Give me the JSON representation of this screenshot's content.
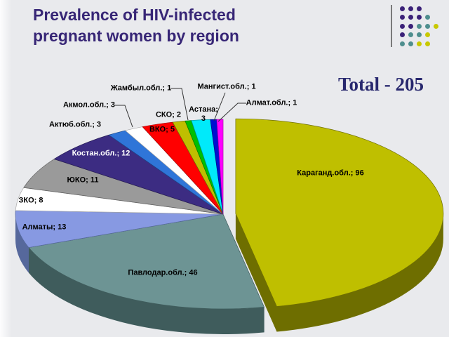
{
  "slide": {
    "title_line1": "Prevalence of HIV-infected",
    "title_line2": "pregnant women by region",
    "total_label": "Total - 205"
  },
  "decoration": {
    "pattern": [
      "PPP",
      "PPPT",
      "PPTTY",
      "PTTY",
      "TTYY"
    ],
    "colors": {
      "P": "#3B2178",
      "T": "#4E8E8E",
      "Y": "#C8C800"
    }
  },
  "chart_data": {
    "type": "pie",
    "title": "Prevalence of HIV-infected pregnant women by region",
    "total": 205,
    "total_label": "Total - 205",
    "label_format": "name; value",
    "legend_position": "none",
    "style": "3d-pie-first-slice-exploded",
    "slices": [
      {
        "name": "Караганд.обл.",
        "value": 96,
        "color": "#BFBF00",
        "side_color": "#6E6E00",
        "exploded": true
      },
      {
        "name": "Павлодар.обл.",
        "value": 46,
        "color": "#6D9494",
        "side_color": "#3F5C5C",
        "exploded": false
      },
      {
        "name": "Алматы",
        "value": 13,
        "color": "#8799E2",
        "side_color": "#56689C",
        "exploded": false
      },
      {
        "name": "ЗКО",
        "value": 8,
        "color": "#FFFFFF",
        "side_color": "#ABABAB",
        "exploded": false
      },
      {
        "name": "ЮКО",
        "value": 11,
        "color": "#9A9A9A",
        "side_color": "#5F5F5F",
        "exploded": false
      },
      {
        "name": "Костан.обл.",
        "value": 12,
        "color": "#3C2C82",
        "side_color": "#251B54",
        "exploded": false
      },
      {
        "name": "Актюб.обл.",
        "value": 3,
        "color": "#2F75D8",
        "side_color": "#1C4B8C",
        "exploded": false
      },
      {
        "name": "Акмол.обл.",
        "value": 3,
        "color": "#FFFFFF",
        "side_color": "#ABABAB",
        "exploded": false
      },
      {
        "name": "ВКО",
        "value": 5,
        "color": "#FF0000",
        "side_color": "#A30000",
        "exploded": false
      },
      {
        "name": "СКО",
        "value": 2,
        "color": "#BFBF00",
        "side_color": "#6E6E00",
        "exploded": false
      },
      {
        "name": "Жамбыл.обл.",
        "value": 1,
        "color": "#00BF00",
        "side_color": "#007800",
        "exploded": false
      },
      {
        "name": "Астана",
        "value": 3,
        "color": "#00EAFA",
        "side_color": "#00909E",
        "exploded": false
      },
      {
        "name": "Мангист.обл.",
        "value": 1,
        "color": "#0010D0",
        "side_color": "#000A86",
        "exploded": false
      },
      {
        "name": "Алмат.обл.",
        "value": 1,
        "color": "#FF00FF",
        "side_color": "#A300A3",
        "exploded": false
      }
    ]
  }
}
